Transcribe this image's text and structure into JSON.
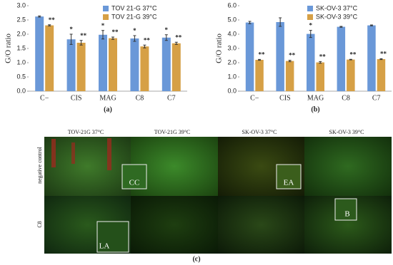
{
  "chart_data": [
    {
      "type": "bar",
      "panel_label": "(a)",
      "y_label": "G/O ratio",
      "categories": [
        "C−",
        "CIS",
        "MAG",
        "C8",
        "C7"
      ],
      "series": [
        {
          "name": "TOV 21-G 37°C",
          "color": "#6a98d8",
          "values": [
            2.62,
            1.82,
            1.98,
            1.85,
            1.88
          ],
          "errors": [
            0.02,
            0.18,
            0.15,
            0.1,
            0.1
          ],
          "markers": [
            null,
            "*",
            "*",
            "*",
            "*"
          ]
        },
        {
          "name": "TOV 21-G 39°C",
          "color": "#d6a046",
          "values": [
            2.31,
            1.7,
            1.86,
            1.57,
            1.68
          ],
          "errors": [
            0.02,
            0.08,
            0.04,
            0.05,
            0.04
          ],
          "markers": [
            "**",
            "**",
            "**",
            "**",
            "**"
          ]
        }
      ],
      "ylim": [
        0,
        3
      ],
      "yticks": [
        {
          "value": 0,
          "label": "0.0"
        },
        0.5,
        {
          "value": 1,
          "label": "1.0"
        },
        1.5,
        {
          "value": 2,
          "label": "2.0"
        },
        2.5,
        {
          "value": 3,
          "label": "3.0"
        }
      ],
      "legend": "top-right"
    },
    {
      "type": "bar",
      "panel_label": "(b)",
      "y_label": "G/O ratio",
      "categories": [
        "C−",
        "CIS",
        "MAG",
        "C8",
        "C7"
      ],
      "series": [
        {
          "name": "SK-OV-3 37°C",
          "color": "#6a98d8",
          "values": [
            4.82,
            4.85,
            4.02,
            4.52,
            4.62
          ],
          "errors": [
            0.08,
            0.3,
            0.25,
            0.03,
            0.03
          ],
          "markers": [
            null,
            null,
            "*",
            null,
            null
          ]
        },
        {
          "name": "SK-OV-3 39°C",
          "color": "#d6a046",
          "values": [
            2.2,
            2.12,
            2.02,
            2.22,
            2.25
          ],
          "errors": [
            0.03,
            0.05,
            0.06,
            0.02,
            0.03
          ],
          "markers": [
            "**",
            "**",
            "**",
            "**",
            "**"
          ]
        }
      ],
      "ylim": [
        0,
        6
      ],
      "yticks": [
        {
          "value": 0,
          "label": "0.0"
        },
        {
          "value": 1,
          "label": "1.0"
        },
        {
          "value": 2,
          "label": "2.0"
        },
        {
          "value": 3,
          "label": "3.0"
        },
        {
          "value": 4,
          "label": "4.0"
        },
        {
          "value": 5,
          "label": "5.0"
        },
        {
          "value": 6,
          "label": "6.0"
        }
      ],
      "legend": "top-right"
    }
  ],
  "figure_c": {
    "panel_label": "(c)",
    "column_labels": [
      "TOV-21G 37°C",
      "TOV-21G 39°C",
      "SK-OV-3 37°C",
      "SK-OV-3 39°C"
    ],
    "row_labels": [
      "negative control",
      "C8"
    ],
    "insets": [
      "CC",
      "EA",
      "LA",
      "B"
    ]
  }
}
